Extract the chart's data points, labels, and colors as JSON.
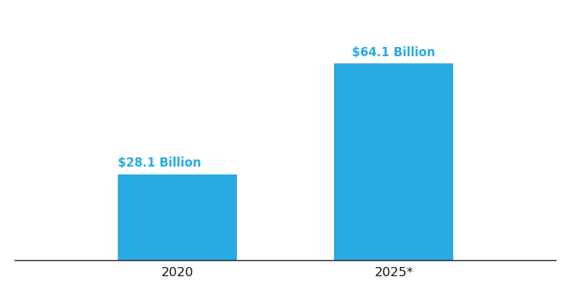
{
  "categories": [
    "2020",
    "2025*"
  ],
  "values": [
    28.1,
    64.1
  ],
  "labels": [
    "$28.1 Billion",
    "$64.1 Billion"
  ],
  "bar_color": "#29ABE2",
  "label_color": "#29ABE2",
  "background_color": "#ffffff",
  "tick_color": "#1a1a1a",
  "bar_width": 0.22,
  "ylim": [
    0,
    80
  ],
  "label_fontsize": 12,
  "tick_fontsize": 13,
  "label_fontweight": "bold",
  "x_positions": [
    0.3,
    0.7
  ],
  "xlim": [
    0.0,
    1.0
  ]
}
